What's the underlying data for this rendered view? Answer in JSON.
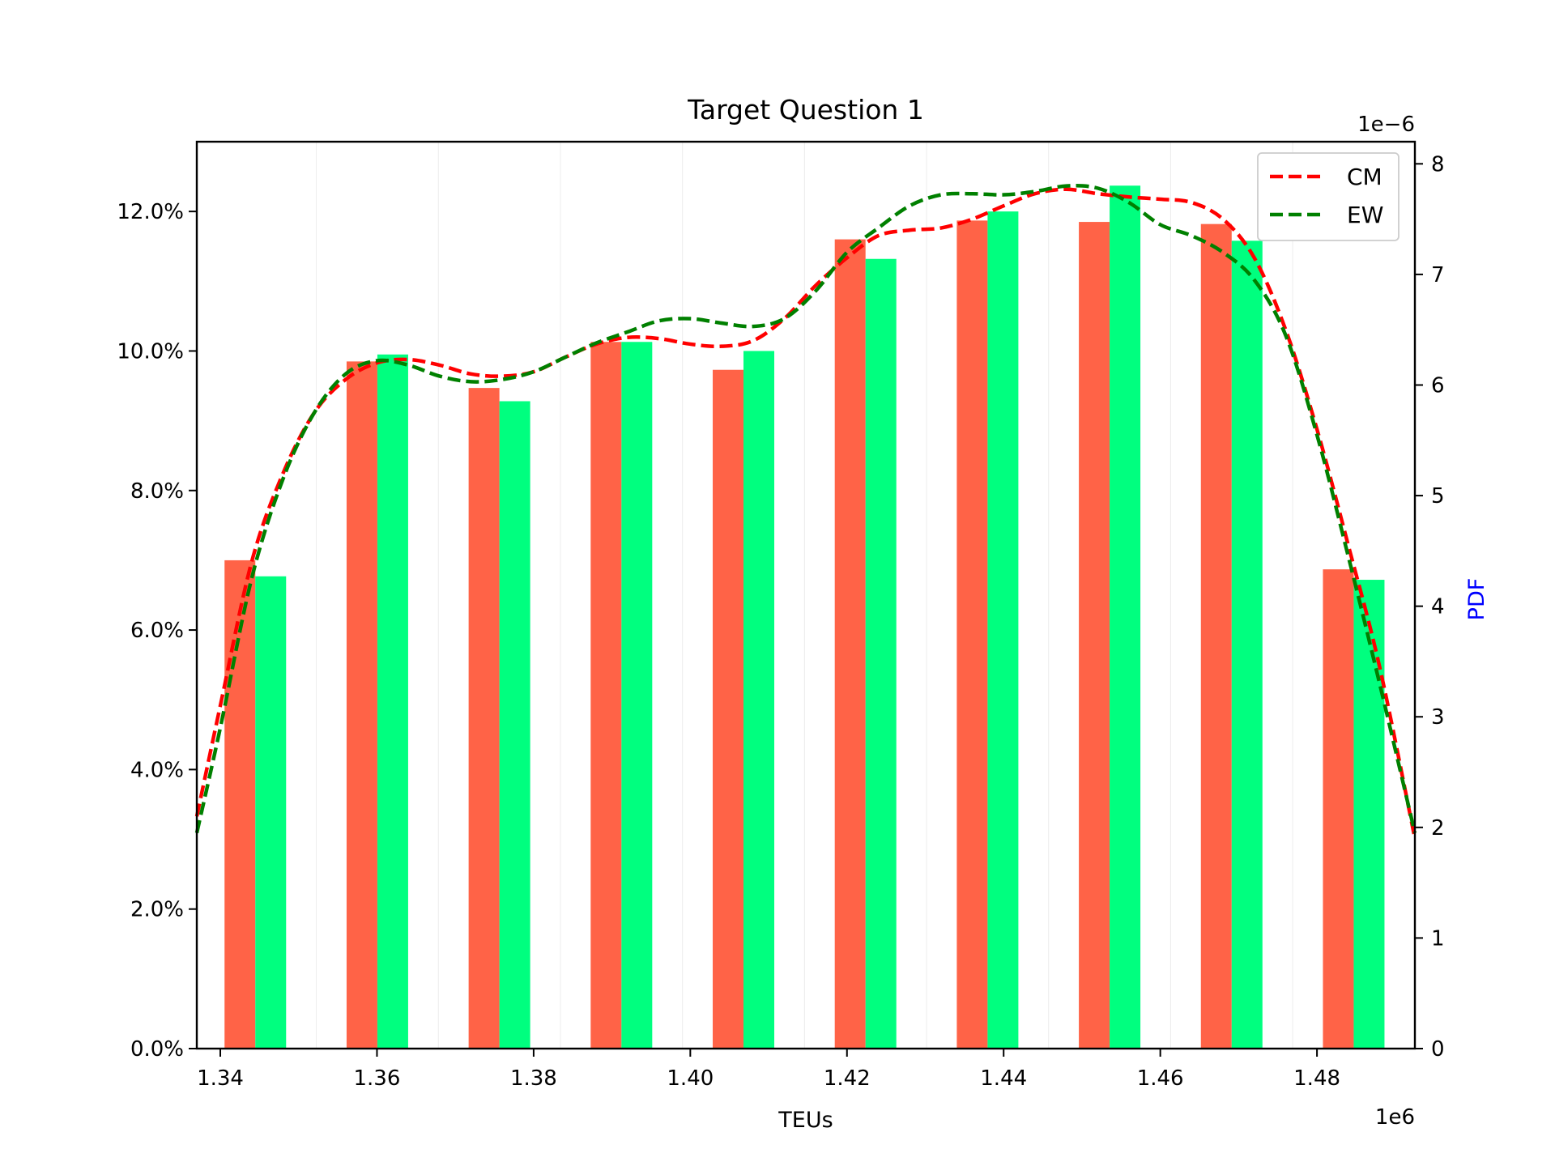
{
  "chart_data": {
    "type": "bar",
    "title": "Target Question 1",
    "xlabel": "TEUs",
    "x_offset_label": "1e6",
    "y_right_label": "PDF",
    "y_right_offset_label": "1e−6",
    "x_tick_labels": [
      "1.34",
      "1.36",
      "1.38",
      "1.40",
      "1.42",
      "1.44",
      "1.46",
      "1.48"
    ],
    "y_left_tick_labels": [
      "0.0%",
      "2.0%",
      "4.0%",
      "6.0%",
      "8.0%",
      "10.0%",
      "12.0%"
    ],
    "y_right_tick_labels": [
      "0",
      "1",
      "2",
      "3",
      "4",
      "5",
      "6",
      "7",
      "8"
    ],
    "xlim": [
      1337000,
      1492500
    ],
    "ylim_left": [
      0,
      13.0
    ],
    "ylim_right": [
      0,
      8.2
    ],
    "grid": "vertical-minor",
    "legend_position": "top-right",
    "colors": {
      "CM": "#ff6347",
      "EW": "#00ff7f",
      "CM_line": "#ff0000",
      "EW_line": "#008000",
      "pdf_label": "#0000ff"
    },
    "categories": [
      1344470,
      1360050,
      1375630,
      1391210,
      1406790,
      1422370,
      1437950,
      1453530,
      1469110,
      1484690
    ],
    "series": [
      {
        "name": "CM",
        "values": [
          7.0,
          9.85,
          9.47,
          10.13,
          9.73,
          11.6,
          11.87,
          11.85,
          11.82,
          6.87
        ]
      },
      {
        "name": "EW",
        "values": [
          6.77,
          9.95,
          9.28,
          10.13,
          10.0,
          11.32,
          12.0,
          12.37,
          11.58,
          6.72
        ]
      }
    ],
    "pdf_curves": [
      {
        "name": "CM",
        "x": [
          1337000,
          1340000,
          1344000,
          1348000,
          1352000,
          1356000,
          1360000,
          1364000,
          1368000,
          1372000,
          1376000,
          1380000,
          1384000,
          1388000,
          1392000,
          1396000,
          1400000,
          1404000,
          1408000,
          1412000,
          1416000,
          1420000,
          1424000,
          1428000,
          1432000,
          1436000,
          1440000,
          1444000,
          1448000,
          1452000,
          1456000,
          1460000,
          1464000,
          1468000,
          1472000,
          1476000,
          1480000,
          1484000,
          1488000,
          1492500
        ],
        "y": [
          2.1,
          3.1,
          4.4,
          5.2,
          5.75,
          6.05,
          6.2,
          6.23,
          6.18,
          6.1,
          6.08,
          6.12,
          6.25,
          6.37,
          6.43,
          6.42,
          6.37,
          6.35,
          6.4,
          6.6,
          6.9,
          7.15,
          7.35,
          7.4,
          7.42,
          7.5,
          7.62,
          7.73,
          7.77,
          7.73,
          7.7,
          7.68,
          7.65,
          7.5,
          7.15,
          6.5,
          5.6,
          4.55,
          3.45,
          1.9
        ]
      },
      {
        "name": "EW",
        "x": [
          1337000,
          1340000,
          1344000,
          1348000,
          1352000,
          1356000,
          1360000,
          1364000,
          1368000,
          1372000,
          1376000,
          1380000,
          1384000,
          1388000,
          1392000,
          1396000,
          1400000,
          1404000,
          1408000,
          1412000,
          1416000,
          1420000,
          1424000,
          1428000,
          1432000,
          1436000,
          1440000,
          1444000,
          1448000,
          1452000,
          1456000,
          1460000,
          1464000,
          1468000,
          1472000,
          1476000,
          1480000,
          1484000,
          1488000,
          1492500
        ],
        "y": [
          1.95,
          2.9,
          4.25,
          5.15,
          5.75,
          6.1,
          6.22,
          6.18,
          6.08,
          6.03,
          6.05,
          6.12,
          6.25,
          6.38,
          6.48,
          6.58,
          6.6,
          6.56,
          6.53,
          6.6,
          6.85,
          7.2,
          7.42,
          7.62,
          7.72,
          7.73,
          7.72,
          7.75,
          7.8,
          7.78,
          7.65,
          7.45,
          7.35,
          7.2,
          6.95,
          6.45,
          5.55,
          4.45,
          3.3,
          1.95
        ]
      }
    ]
  }
}
